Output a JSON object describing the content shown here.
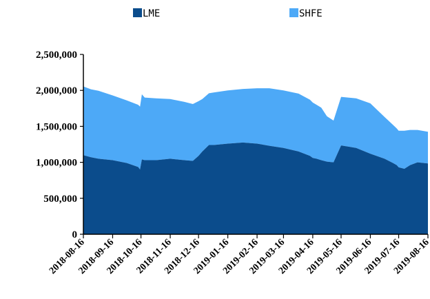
{
  "chart_data": {
    "type": "area",
    "stacked": true,
    "legend_position": "top",
    "grid": false,
    "ylim": [
      0,
      2500000
    ],
    "yticks": [
      0,
      500000,
      1000000,
      1500000,
      2000000,
      2500000
    ],
    "ytick_labels": [
      "0",
      "500,000",
      "1,000,000",
      "1,500,000",
      "2,000,000",
      "2,500,000"
    ],
    "xlim": [
      "2018-08-16",
      "2019-08-16"
    ],
    "xtick_labels": [
      "2018-08-16",
      "2018-09-16",
      "2018-10-16",
      "2018-11-16",
      "2018-12-16",
      "2019-01-16",
      "2019-02-16",
      "2019-03-16",
      "2019-04-16",
      "2019-05-16",
      "2019-06-16",
      "2019-07-16",
      "2019-08-16"
    ],
    "x": [
      "2018-08-16",
      "2018-08-24",
      "2018-09-01",
      "2018-09-16",
      "2018-10-01",
      "2018-10-13",
      "2018-10-15",
      "2018-10-17",
      "2018-10-20",
      "2018-11-01",
      "2018-11-16",
      "2018-12-01",
      "2018-12-10",
      "2018-12-16",
      "2018-12-20",
      "2018-12-27",
      "2019-01-01",
      "2019-01-16",
      "2019-02-01",
      "2019-02-16",
      "2019-03-01",
      "2019-03-16",
      "2019-04-01",
      "2019-04-13",
      "2019-04-16",
      "2019-04-20",
      "2019-04-25",
      "2019-05-01",
      "2019-05-08",
      "2019-05-16",
      "2019-06-01",
      "2019-06-16",
      "2019-07-01",
      "2019-07-10",
      "2019-07-14",
      "2019-07-16",
      "2019-07-22",
      "2019-07-28",
      "2019-08-05",
      "2019-08-16",
      "2019-08-19"
    ],
    "series": [
      {
        "name": "LME",
        "color": "#0b4c8c",
        "values": [
          1100000,
          1070000,
          1050000,
          1030000,
          990000,
          935000,
          900000,
          1040000,
          1030000,
          1030000,
          1050000,
          1030000,
          1020000,
          1090000,
          1150000,
          1240000,
          1240000,
          1260000,
          1275000,
          1260000,
          1230000,
          1200000,
          1150000,
          1090000,
          1060000,
          1050000,
          1030000,
          1010000,
          1000000,
          1235000,
          1200000,
          1120000,
          1050000,
          990000,
          960000,
          930000,
          910000,
          960000,
          1000000,
          985000,
          950000
        ]
      },
      {
        "name": "SHFE",
        "color": "#4da9f7",
        "values": [
          955000,
          945000,
          945000,
          900000,
          870000,
          865000,
          875000,
          905000,
          870000,
          860000,
          830000,
          810000,
          790000,
          760000,
          730000,
          720000,
          730000,
          740000,
          745000,
          770000,
          800000,
          800000,
          805000,
          780000,
          770000,
          750000,
          730000,
          630000,
          580000,
          675000,
          690000,
          700000,
          580000,
          530000,
          510000,
          510000,
          530000,
          490000,
          450000,
          440000,
          430000
        ]
      }
    ]
  }
}
